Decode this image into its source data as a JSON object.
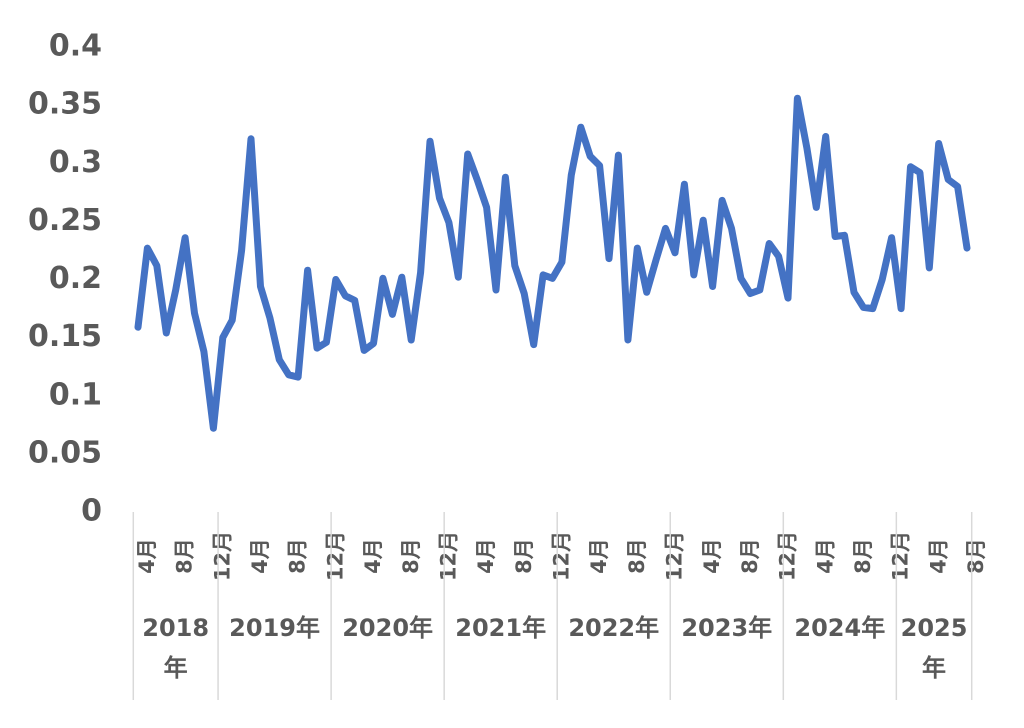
{
  "chart_data": {
    "type": "line",
    "categories": [
      "4月",
      null,
      null,
      null,
      "8月",
      null,
      null,
      null,
      "12月",
      null,
      null,
      null,
      "4月",
      null,
      null,
      null,
      "8月",
      null,
      null,
      null,
      "12月",
      null,
      null,
      null,
      "4月",
      null,
      null,
      null,
      "8月",
      null,
      null,
      null,
      "12月",
      null,
      null,
      null,
      "4月",
      null,
      null,
      null,
      "8月",
      null,
      null,
      null,
      "12月",
      null,
      null,
      null,
      "4月",
      null,
      null,
      null,
      "8月",
      null,
      null,
      null,
      "12月",
      null,
      null,
      null,
      "4月",
      null,
      null,
      null,
      "8月",
      null,
      null,
      null,
      "12月",
      null,
      null,
      null,
      "4月",
      null,
      null,
      null,
      "8月",
      null,
      null,
      null,
      "12月",
      null,
      null,
      null,
      "4月",
      null,
      null,
      null,
      "8月"
    ],
    "year_groups": [
      "2018年",
      "2019年",
      "2020年",
      "2021年",
      "2022年",
      "2023年",
      "2024年",
      "2025年"
    ],
    "series": [
      {
        "color": "#4472c4",
        "values": [
          0.159,
          0.227,
          0.212,
          0.154,
          0.191,
          0.236,
          0.171,
          0.138,
          0.072,
          0.15,
          0.165,
          0.225,
          0.321,
          0.194,
          0.167,
          0.131,
          0.118,
          0.116,
          0.208,
          0.141,
          0.146,
          0.2,
          0.186,
          0.182,
          0.139,
          0.145,
          0.201,
          0.17,
          0.202,
          0.148,
          0.206,
          0.319,
          0.27,
          0.249,
          0.202,
          0.308,
          0.286,
          0.262,
          0.191,
          0.288,
          0.212,
          0.188,
          0.144,
          0.204,
          0.201,
          0.215,
          0.29,
          0.331,
          0.306,
          0.298,
          0.218,
          0.307,
          0.148,
          0.227,
          0.189,
          0.217,
          0.244,
          0.223,
          0.282,
          0.204,
          0.251,
          0.194,
          0.268,
          0.244,
          0.201,
          0.188,
          0.191,
          0.231,
          0.22,
          0.184,
          0.356,
          0.313,
          0.262,
          0.323,
          0.237,
          0.238,
          0.189,
          0.176,
          0.175,
          0.2,
          0.236,
          0.175,
          0.297,
          0.292,
          0.21,
          0.317,
          0.286,
          0.28,
          0.227
        ]
      }
    ],
    "ylim": [
      0,
      0.4
    ],
    "yticks": [
      0,
      0.05,
      0.1,
      0.15,
      0.2,
      0.25,
      0.3,
      0.35,
      0.4
    ],
    "grid": false
  }
}
